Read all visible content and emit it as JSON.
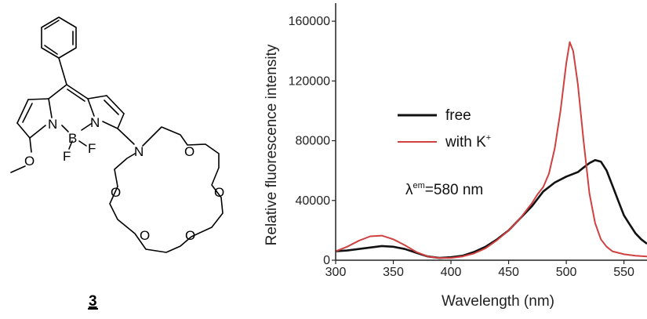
{
  "structure": {
    "compound_label": "3",
    "atoms": {
      "n1": "N",
      "n2": "N",
      "boron": "B",
      "fluorine_1": "F",
      "fluorine_2": "F",
      "methoxy_oxygen": "O",
      "crown_nitrogen": "N",
      "crown_oxygen_1": "O",
      "crown_oxygen_2": "O",
      "crown_oxygen_3": "O",
      "crown_oxygen_4": "O",
      "crown_oxygen_5": "O"
    }
  },
  "chart_data": {
    "type": "line",
    "xlabel": "Wavelength (nm)",
    "ylabel": "Relative fluorescence intensity",
    "xlim": [
      300,
      570
    ],
    "ylim": [
      0,
      170000
    ],
    "x_ticks": [
      300,
      350,
      400,
      450,
      500,
      550
    ],
    "x_tick_labels": [
      "300",
      "350",
      "400",
      "450",
      "500",
      "550"
    ],
    "y_ticks": [
      0,
      40000,
      80000,
      120000,
      160000
    ],
    "y_tick_labels": [
      "0",
      "40000",
      "80000",
      "120000",
      "160000"
    ],
    "annotation": {
      "lambda": "λ",
      "superscript": "em",
      "text": "=580 nm"
    },
    "legend": {
      "placement": "center",
      "entries": [
        {
          "label": "free",
          "color": "#111111"
        },
        {
          "label": "with K",
          "superscript": "+",
          "color": "#d04040"
        }
      ]
    },
    "series": [
      {
        "name": "free",
        "color": "#111111",
        "x": [
          300,
          310,
          320,
          330,
          340,
          350,
          360,
          370,
          380,
          390,
          400,
          410,
          420,
          430,
          440,
          450,
          460,
          470,
          480,
          490,
          500,
          510,
          515,
          520,
          525,
          530,
          535,
          540,
          545,
          550,
          555,
          560,
          565,
          570
        ],
        "y": [
          6000,
          6500,
          7500,
          8500,
          9500,
          9000,
          7500,
          5000,
          2500,
          1500,
          2000,
          3000,
          5500,
          9000,
          14000,
          20000,
          28000,
          36000,
          46000,
          52000,
          56000,
          59000,
          62000,
          65000,
          67000,
          66000,
          60000,
          50000,
          40000,
          30000,
          24000,
          18000,
          14000,
          11000
        ]
      },
      {
        "name": "with K+",
        "color": "#d04040",
        "x": [
          300,
          310,
          320,
          330,
          340,
          350,
          360,
          370,
          380,
          390,
          400,
          410,
          420,
          430,
          440,
          450,
          460,
          470,
          475,
          480,
          485,
          490,
          495,
          500,
          503,
          506,
          510,
          515,
          520,
          525,
          530,
          535,
          540,
          550,
          560,
          570
        ],
        "y": [
          6000,
          9000,
          13000,
          16000,
          16500,
          14000,
          10000,
          5500,
          2500,
          1500,
          1500,
          2500,
          4500,
          8000,
          13500,
          20000,
          28000,
          38000,
          44000,
          49000,
          58000,
          75000,
          100000,
          132000,
          146000,
          140000,
          118000,
          80000,
          45000,
          25000,
          14000,
          9000,
          6000,
          4000,
          3000,
          2500
        ]
      }
    ]
  }
}
